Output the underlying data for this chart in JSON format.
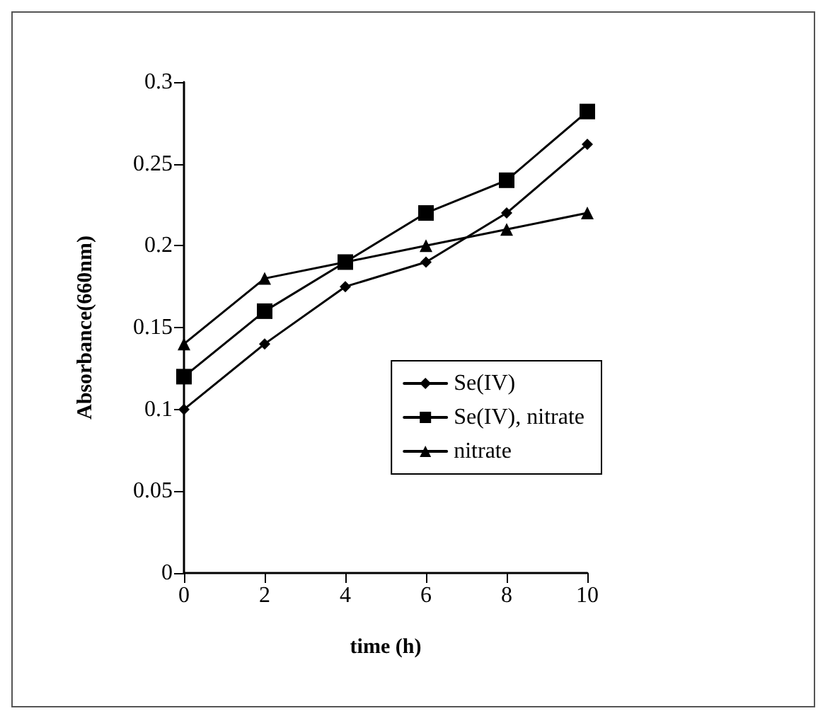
{
  "chart_data": {
    "type": "line",
    "xlabel": "time (h)",
    "ylabel": "Absorbance(660nm)",
    "x": [
      0,
      2,
      4,
      6,
      8,
      10
    ],
    "series": [
      {
        "name": "Se(IV)",
        "color": "#000000",
        "marker": "diamond",
        "values": [
          0.1,
          0.14,
          0.175,
          0.19,
          0.22,
          0.262
        ]
      },
      {
        "name": "Se(IV), nitrate",
        "color": "#000000",
        "marker": "square",
        "values": [
          0.12,
          0.16,
          0.19,
          0.22,
          0.24,
          0.282
        ]
      },
      {
        "name": "nitrate",
        "color": "#000000",
        "marker": "triangle",
        "values": [
          0.14,
          0.18,
          0.19,
          0.2,
          0.21,
          0.22
        ]
      }
    ],
    "xlim": [
      0,
      10
    ],
    "xticks": [
      0,
      2,
      4,
      6,
      8,
      10
    ],
    "ylim": [
      0,
      0.3
    ],
    "yticks": [
      0,
      0.05,
      0.1,
      0.15,
      0.2,
      0.25,
      0.3
    ],
    "grid": false,
    "legend": "right",
    "line_style": "solid"
  }
}
